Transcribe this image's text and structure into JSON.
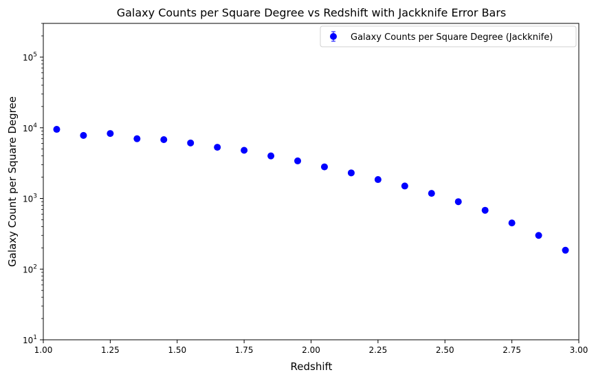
{
  "chart_data": {
    "type": "scatter",
    "title": "Galaxy Counts per Square Degree vs Redshift with Jackknife Error Bars",
    "xlabel": "Redshift",
    "ylabel": "Galaxy Count per Square Degree",
    "xlim": [
      1.0,
      3.0
    ],
    "ylim": [
      10,
      300000
    ],
    "yscale": "log",
    "x_ticks": [
      1.0,
      1.25,
      1.5,
      1.75,
      2.0,
      2.25,
      2.5,
      2.75,
      3.0
    ],
    "x_tick_labels": [
      "1.00",
      "1.25",
      "1.50",
      "1.75",
      "2.00",
      "2.25",
      "2.50",
      "2.75",
      "3.00"
    ],
    "y_ticks": [
      10,
      100,
      1000,
      10000,
      100000
    ],
    "y_tick_bases": [
      "10",
      "10",
      "10",
      "10",
      "10"
    ],
    "y_tick_exponents": [
      "1",
      "2",
      "3",
      "4",
      "5"
    ],
    "grid": false,
    "legend_position": "top-right",
    "series": [
      {
        "name": "Galaxy Counts per Square Degree (Jackknife)",
        "color": "#0000ff",
        "x": [
          1.05,
          1.15,
          1.25,
          1.35,
          1.45,
          1.55,
          1.65,
          1.75,
          1.85,
          1.95,
          2.05,
          2.15,
          2.25,
          2.35,
          2.45,
          2.55,
          2.65,
          2.75,
          2.85,
          2.95
        ],
        "y": [
          9500,
          7800,
          8300,
          7000,
          6800,
          6100,
          5300,
          4800,
          4000,
          3400,
          2800,
          2300,
          1850,
          1500,
          1180,
          900,
          680,
          450,
          300,
          185
        ]
      }
    ]
  }
}
